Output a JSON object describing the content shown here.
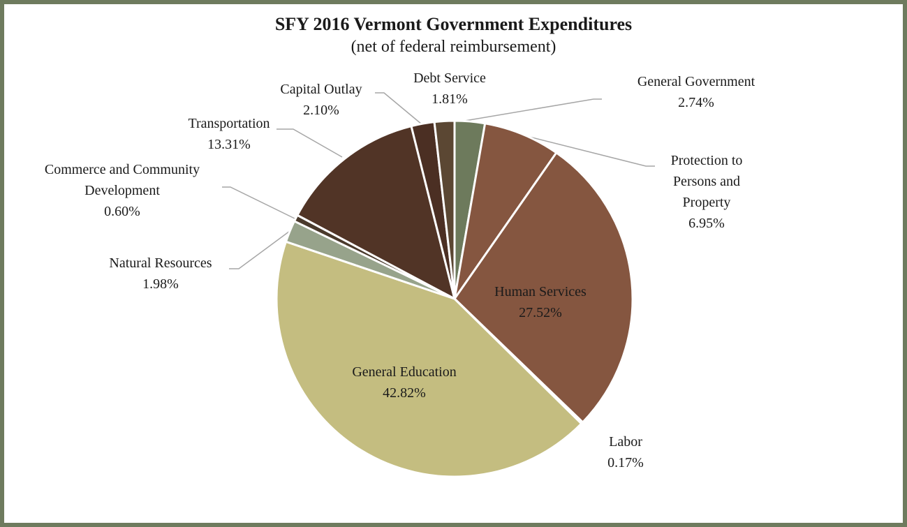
{
  "chart_data": {
    "type": "pie",
    "title": "SFY 2016 Vermont Government Expenditures",
    "subtitle": "(net of federal reimbursement)",
    "categories": [
      "General Government",
      "Protection to Persons and Property",
      "Human Services",
      "Labor",
      "General Education",
      "Natural Resources",
      "Commerce and Community Development",
      "Transportation",
      "Capital Outlay",
      "Debt Service"
    ],
    "values": [
      2.74,
      6.95,
      27.52,
      0.17,
      42.82,
      1.98,
      0.6,
      13.31,
      2.1,
      1.81
    ],
    "value_labels": [
      "2.74%",
      "6.95%",
      "27.52%",
      "0.17%",
      "42.82%",
      "1.98%",
      "0.60%",
      "13.31%",
      "2.10%",
      "1.81%"
    ],
    "colors": [
      "#6d7a5c",
      "#855640",
      "#855640",
      "#9a7a5e",
      "#c4bd80",
      "#97a38b",
      "#4a3a2c",
      "#513426",
      "#4b2f23",
      "#5b4733"
    ]
  }
}
